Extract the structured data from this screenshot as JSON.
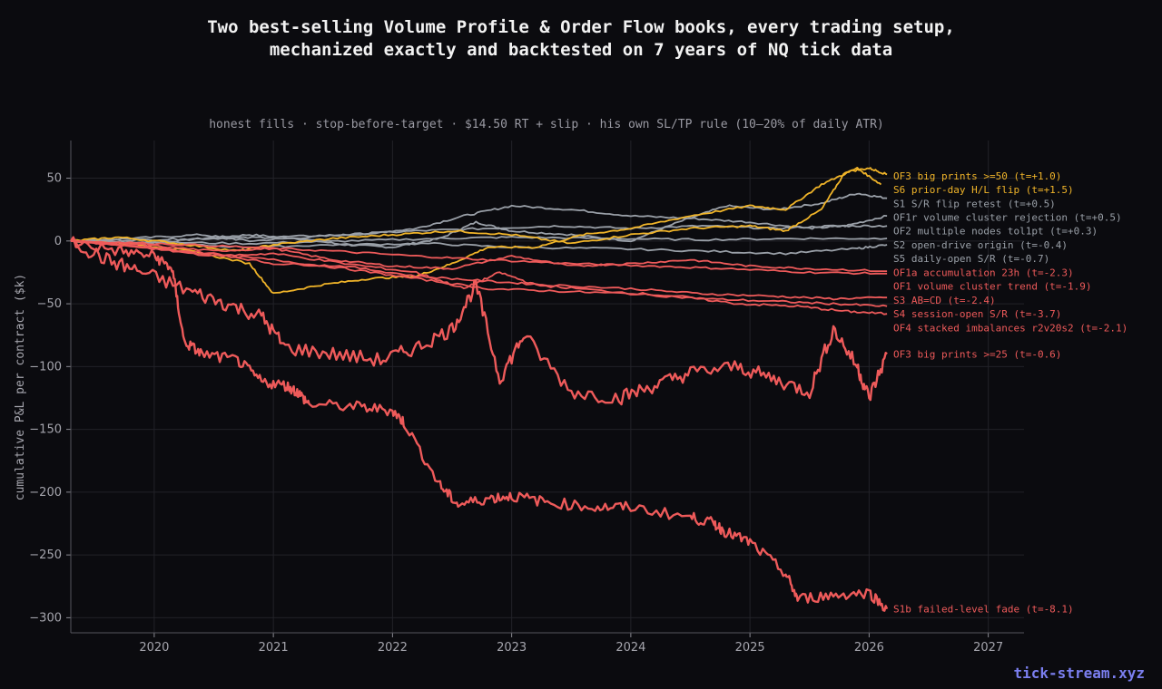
{
  "header": {
    "title_line1": "Two best-selling Volume Profile & Order Flow books, every trading setup,",
    "title_line2": "mechanized exactly and backtested on 7 years of NQ tick data",
    "subtitle": "honest fills · stop-before-target · $14.50 RT + slip · his own SL/TP rule (10–20% of daily ATR)"
  },
  "watermark": "tick-stream.xyz",
  "colors": {
    "background": "#0b0b0f",
    "gold": "#f0b429",
    "gray": "#9aa0a8",
    "red": "#ee5a5a",
    "grid": "#222228"
  },
  "chart_data": {
    "type": "line",
    "ylabel": "cumulative P&L per contract ($k)",
    "xlim": [
      2019.3,
      2027.3
    ],
    "ylim": [
      -312,
      80
    ],
    "xticks": [
      2020,
      2021,
      2022,
      2023,
      2024,
      2025,
      2026,
      2027
    ],
    "yticks": [
      50,
      0,
      -50,
      -100,
      -150,
      -200,
      -250,
      -300
    ],
    "grid": true,
    "series": [
      {
        "name": "OF3 big prints >=50 (t=+1.0)",
        "color": "gold",
        "final": 53,
        "points": [
          [
            2019.3,
            0
          ],
          [
            2019.7,
            3
          ],
          [
            2020.2,
            -2
          ],
          [
            2020.7,
            -8
          ],
          [
            2021.0,
            -3
          ],
          [
            2021.5,
            2
          ],
          [
            2022.0,
            5
          ],
          [
            2022.5,
            8
          ],
          [
            2023.0,
            5
          ],
          [
            2023.5,
            -2
          ],
          [
            2024.0,
            5
          ],
          [
            2024.5,
            10
          ],
          [
            2025.0,
            12
          ],
          [
            2025.3,
            8
          ],
          [
            2025.6,
            25
          ],
          [
            2025.8,
            55
          ],
          [
            2026.0,
            58
          ],
          [
            2026.15,
            53
          ]
        ]
      },
      {
        "name": "S6 prior-day H/L flip (t=+1.5)",
        "color": "gold",
        "final": 45,
        "points": [
          [
            2019.3,
            0
          ],
          [
            2019.8,
            -2
          ],
          [
            2020.3,
            -8
          ],
          [
            2020.8,
            -18
          ],
          [
            2021.0,
            -42
          ],
          [
            2021.4,
            -35
          ],
          [
            2021.8,
            -30
          ],
          [
            2022.2,
            -28
          ],
          [
            2022.5,
            -18
          ],
          [
            2022.8,
            -5
          ],
          [
            2023.2,
            -5
          ],
          [
            2023.6,
            5
          ],
          [
            2024.0,
            10
          ],
          [
            2024.5,
            20
          ],
          [
            2025.0,
            28
          ],
          [
            2025.3,
            25
          ],
          [
            2025.6,
            45
          ],
          [
            2025.9,
            58
          ],
          [
            2026.1,
            45
          ]
        ]
      },
      {
        "name": "S1 S/R flip retest (t=+0.5)",
        "color": "gray",
        "final": 34,
        "points": [
          [
            2019.3,
            0
          ],
          [
            2019.9,
            -2
          ],
          [
            2020.4,
            2
          ],
          [
            2020.8,
            5
          ],
          [
            2021.2,
            2
          ],
          [
            2021.6,
            -3
          ],
          [
            2022.0,
            -5
          ],
          [
            2022.4,
            2
          ],
          [
            2022.7,
            15
          ],
          [
            2023.0,
            8
          ],
          [
            2023.5,
            5
          ],
          [
            2024.0,
            0
          ],
          [
            2024.4,
            15
          ],
          [
            2024.8,
            28
          ],
          [
            2025.2,
            25
          ],
          [
            2025.6,
            30
          ],
          [
            2025.9,
            38
          ],
          [
            2026.15,
            34
          ]
        ]
      },
      {
        "name": "OF1r volume cluster rejection (t=+0.5)",
        "color": "gray",
        "final": 20,
        "points": [
          [
            2019.3,
            0
          ],
          [
            2019.8,
            2
          ],
          [
            2020.4,
            5
          ],
          [
            2020.8,
            0
          ],
          [
            2021.3,
            3
          ],
          [
            2021.8,
            6
          ],
          [
            2022.2,
            10
          ],
          [
            2022.6,
            20
          ],
          [
            2023.0,
            28
          ],
          [
            2023.5,
            25
          ],
          [
            2024.0,
            20
          ],
          [
            2024.5,
            18
          ],
          [
            2025.0,
            15
          ],
          [
            2025.5,
            10
          ],
          [
            2025.8,
            12
          ],
          [
            2026.15,
            20
          ]
        ]
      },
      {
        "name": "OF2 multiple nodes tol1pt (t=+0.3)",
        "color": "gray",
        "final": 12,
        "points": [
          [
            2019.3,
            0
          ],
          [
            2019.9,
            1
          ],
          [
            2020.5,
            2
          ],
          [
            2021.0,
            3
          ],
          [
            2021.6,
            5
          ],
          [
            2022.2,
            8
          ],
          [
            2022.8,
            10
          ],
          [
            2023.4,
            12
          ],
          [
            2024.0,
            10
          ],
          [
            2024.6,
            12
          ],
          [
            2025.2,
            10
          ],
          [
            2025.7,
            12
          ],
          [
            2026.15,
            12
          ]
        ]
      },
      {
        "name": "S2 open-drive origin (t=-0.4)",
        "color": "gray",
        "final": 2,
        "points": [
          [
            2019.3,
            0
          ],
          [
            2020.0,
            -1
          ],
          [
            2020.8,
            -2
          ],
          [
            2021.6,
            0
          ],
          [
            2022.4,
            2
          ],
          [
            2023.0,
            3
          ],
          [
            2023.8,
            2
          ],
          [
            2024.6,
            1
          ],
          [
            2025.4,
            2
          ],
          [
            2026.15,
            2
          ]
        ]
      },
      {
        "name": "S5 daily-open S/R (t=-0.7)",
        "color": "gray",
        "final": -3,
        "points": [
          [
            2019.3,
            0
          ],
          [
            2020.0,
            -2
          ],
          [
            2020.8,
            -5
          ],
          [
            2021.5,
            -3
          ],
          [
            2022.3,
            -2
          ],
          [
            2023.0,
            -5
          ],
          [
            2023.8,
            -6
          ],
          [
            2024.6,
            -8
          ],
          [
            2025.3,
            -10
          ],
          [
            2025.9,
            -6
          ],
          [
            2026.15,
            -3
          ]
        ]
      },
      {
        "name": "OF1a accumulation 23h (t=-2.3)",
        "color": "red",
        "final": -26,
        "points": [
          [
            2019.3,
            0
          ],
          [
            2020.0,
            -2
          ],
          [
            2020.8,
            -5
          ],
          [
            2021.5,
            -8
          ],
          [
            2022.2,
            -12
          ],
          [
            2022.8,
            -15
          ],
          [
            2023.5,
            -18
          ],
          [
            2024.2,
            -20
          ],
          [
            2024.8,
            -22
          ],
          [
            2025.5,
            -25
          ],
          [
            2026.15,
            -26
          ]
        ]
      },
      {
        "name": "OF1 volume cluster trend (t=-1.9)",
        "color": "red",
        "final": -24,
        "points": [
          [
            2019.3,
            0
          ],
          [
            2019.9,
            -3
          ],
          [
            2020.5,
            -8
          ],
          [
            2021.0,
            -6
          ],
          [
            2021.5,
            -15
          ],
          [
            2022.0,
            -20
          ],
          [
            2022.5,
            -22
          ],
          [
            2023.0,
            -12
          ],
          [
            2023.5,
            -20
          ],
          [
            2024.0,
            -18
          ],
          [
            2024.5,
            -15
          ],
          [
            2025.0,
            -20
          ],
          [
            2025.5,
            -22
          ],
          [
            2026.15,
            -24
          ]
        ]
      },
      {
        "name": "S3 AB=CD (t=-2.4)",
        "color": "red",
        "final": -45,
        "points": [
          [
            2019.3,
            0
          ],
          [
            2019.9,
            -5
          ],
          [
            2020.5,
            -10
          ],
          [
            2021.0,
            -18
          ],
          [
            2021.6,
            -20
          ],
          [
            2022.2,
            -28
          ],
          [
            2022.8,
            -32
          ],
          [
            2023.3,
            -35
          ],
          [
            2024.0,
            -38
          ],
          [
            2024.6,
            -42
          ],
          [
            2025.2,
            -44
          ],
          [
            2025.7,
            -46
          ],
          [
            2026.15,
            -45
          ]
        ]
      },
      {
        "name": "S4 session-open S/R (t=-3.7)",
        "color": "red",
        "final": -52,
        "points": [
          [
            2019.3,
            0
          ],
          [
            2019.8,
            -4
          ],
          [
            2020.4,
            -10
          ],
          [
            2021.0,
            -15
          ],
          [
            2021.6,
            -22
          ],
          [
            2022.2,
            -30
          ],
          [
            2022.8,
            -38
          ],
          [
            2023.4,
            -40
          ],
          [
            2024.0,
            -42
          ],
          [
            2024.6,
            -46
          ],
          [
            2025.2,
            -48
          ],
          [
            2025.7,
            -50
          ],
          [
            2026.15,
            -52
          ]
        ]
      },
      {
        "name": "OF4 stacked imbalances r2v20s2 (t=-2.1)",
        "color": "red",
        "final": -58,
        "points": [
          [
            2019.3,
            0
          ],
          [
            2019.9,
            -5
          ],
          [
            2020.5,
            -12
          ],
          [
            2021.0,
            -10
          ],
          [
            2021.6,
            -18
          ],
          [
            2022.2,
            -25
          ],
          [
            2022.6,
            -38
          ],
          [
            2022.9,
            -25
          ],
          [
            2023.2,
            -35
          ],
          [
            2023.8,
            -40
          ],
          [
            2024.4,
            -44
          ],
          [
            2024.9,
            -50
          ],
          [
            2025.4,
            -52
          ],
          [
            2025.8,
            -56
          ],
          [
            2026.15,
            -58
          ]
        ]
      },
      {
        "name": "OF3 big prints >=25 (t=-0.6)",
        "color": "red",
        "final": -90,
        "points": [
          [
            2019.3,
            0
          ],
          [
            2019.6,
            -15
          ],
          [
            2019.9,
            -25
          ],
          [
            2020.3,
            -40
          ],
          [
            2020.6,
            -50
          ],
          [
            2020.9,
            -60
          ],
          [
            2021.1,
            -85
          ],
          [
            2021.5,
            -90
          ],
          [
            2021.9,
            -95
          ],
          [
            2022.2,
            -85
          ],
          [
            2022.5,
            -70
          ],
          [
            2022.7,
            -35
          ],
          [
            2022.9,
            -110
          ],
          [
            2023.1,
            -75
          ],
          [
            2023.5,
            -120
          ],
          [
            2023.9,
            -125
          ],
          [
            2024.2,
            -115
          ],
          [
            2024.5,
            -105
          ],
          [
            2024.9,
            -100
          ],
          [
            2025.2,
            -110
          ],
          [
            2025.5,
            -120
          ],
          [
            2025.7,
            -70
          ],
          [
            2025.9,
            -100
          ],
          [
            2026.0,
            -125
          ],
          [
            2026.15,
            -90
          ]
        ]
      },
      {
        "name": "S1b failed-level fade (t=-8.1)",
        "color": "red",
        "final": -293,
        "points": [
          [
            2019.3,
            0
          ],
          [
            2019.7,
            -8
          ],
          [
            2020.0,
            -12
          ],
          [
            2020.15,
            -22
          ],
          [
            2020.25,
            -80
          ],
          [
            2020.4,
            -90
          ],
          [
            2020.7,
            -95
          ],
          [
            2020.9,
            -112
          ],
          [
            2021.1,
            -115
          ],
          [
            2021.2,
            -120
          ],
          [
            2021.3,
            -130
          ],
          [
            2021.7,
            -132
          ],
          [
            2022.0,
            -135
          ],
          [
            2022.1,
            -145
          ],
          [
            2022.4,
            -195
          ],
          [
            2022.55,
            -210
          ],
          [
            2022.8,
            -205
          ],
          [
            2023.0,
            -203
          ],
          [
            2023.3,
            -208
          ],
          [
            2023.7,
            -212
          ],
          [
            2024.0,
            -212
          ],
          [
            2024.5,
            -220
          ],
          [
            2024.7,
            -225
          ],
          [
            2024.8,
            -232
          ],
          [
            2025.0,
            -240
          ],
          [
            2025.3,
            -265
          ],
          [
            2025.4,
            -285
          ],
          [
            2025.7,
            -282
          ],
          [
            2026.0,
            -280
          ],
          [
            2026.15,
            -293
          ]
        ]
      }
    ],
    "label_y": [
      52,
      41,
      30,
      19,
      8,
      -3,
      -14,
      -25,
      -36,
      -47,
      -58,
      -69,
      -90,
      -293
    ]
  }
}
